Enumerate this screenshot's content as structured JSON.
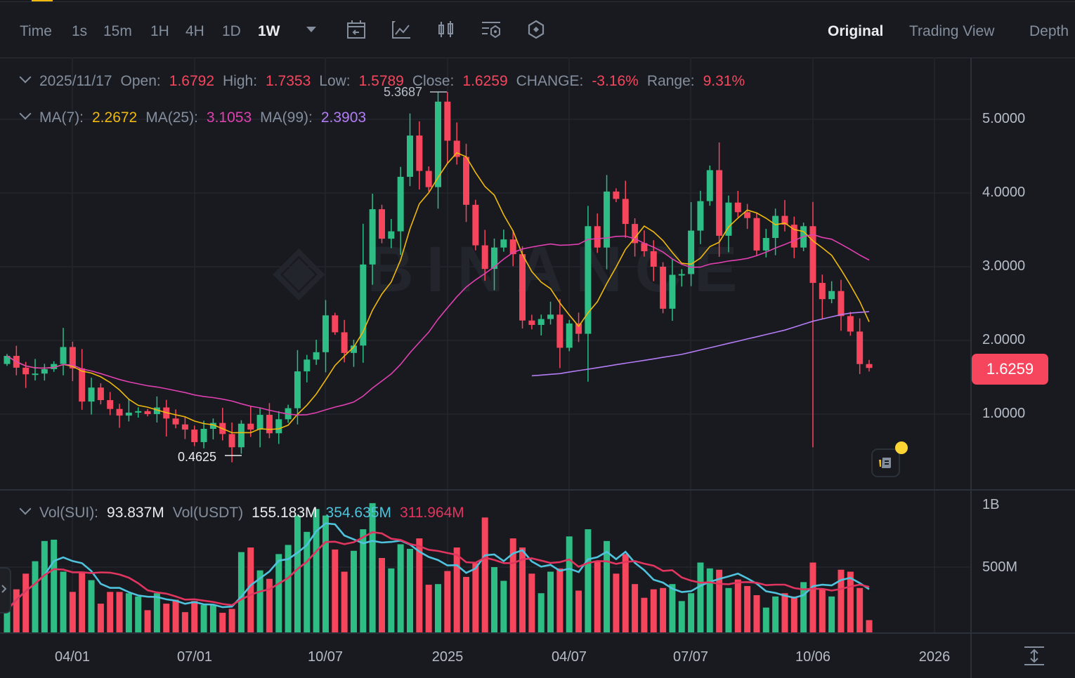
{
  "toolbar": {
    "timeframes": [
      "Time",
      "1s",
      "15m",
      "1H",
      "4H",
      "1D",
      "1W"
    ],
    "active_timeframe": "1W",
    "icons": [
      "calendar-back-icon",
      "indicator-chart-icon",
      "candle-type-icon",
      "settings-layers-icon",
      "hexagon-settings-icon"
    ],
    "view_tabs": [
      "Original",
      "Trading View",
      "Depth"
    ],
    "active_view": "Original"
  },
  "ohlc_legend": {
    "date": "2025/11/17",
    "open_label": "Open:",
    "open": "1.6792",
    "high_label": "High:",
    "high": "1.7353",
    "low_label": "Low:",
    "low": "1.5789",
    "close_label": "Close:",
    "close": "1.6259",
    "change_label": "CHANGE:",
    "change": "-3.16%",
    "range_label": "Range:",
    "range": "9.31%"
  },
  "ma_legend": {
    "ma7_label": "MA(7):",
    "ma7": "2.2672",
    "ma25_label": "MA(25):",
    "ma25": "3.1053",
    "ma99_label": "MA(99):",
    "ma99": "2.3903"
  },
  "vol_legend": {
    "sui_label": "Vol(SUI):",
    "sui": "93.837M",
    "usdt_label": "Vol(USDT)",
    "usdt": "155.183M",
    "ma1": "354.635M",
    "ma2": "311.964M"
  },
  "price_axis": [
    "5.0000",
    "4.0000",
    "3.0000",
    "2.0000",
    "1.0000"
  ],
  "volume_axis": [
    "1B",
    "500M"
  ],
  "time_axis": [
    "04/01",
    "07/01",
    "10/07",
    "2025",
    "04/07",
    "07/07",
    "10/06",
    "2026"
  ],
  "last_price": "1.6259",
  "annotations": {
    "high": "5.3687",
    "low": "0.4625"
  },
  "watermark": "BINANCE",
  "colors": {
    "up": "#2ebd85",
    "down": "#f6465d",
    "ma7": "#f0b90b",
    "ma25": "#e040b0",
    "ma99": "#b47cf5",
    "vol_ma1": "#4fc3dc",
    "vol_ma2": "#e0355f"
  },
  "chart_data": {
    "type": "candlestick",
    "interval": "1W",
    "first_open": 1.68,
    "closes": [
      1.79,
      1.63,
      1.54,
      1.55,
      1.61,
      1.68,
      1.91,
      1.62,
      1.17,
      1.36,
      1.19,
      1.07,
      0.98,
      1.02,
      1.04,
      1.0,
      1.09,
      0.94,
      0.86,
      0.79,
      0.62,
      0.8,
      0.88,
      0.73,
      0.55,
      0.87,
      0.79,
      0.99,
      0.74,
      0.93,
      1.08,
      1.58,
      1.74,
      1.84,
      2.34,
      2.11,
      1.83,
      1.93,
      3.03,
      3.78,
      3.38,
      3.48,
      4.22,
      4.78,
      4.3,
      4.08,
      5.24,
      4.71,
      4.49,
      3.84,
      3.29,
      2.97,
      3.26,
      3.37,
      3.17,
      2.27,
      2.21,
      2.29,
      2.35,
      1.9,
      2.23,
      2.09,
      3.55,
      3.26,
      4.02,
      3.92,
      3.58,
      3.32,
      3.21,
      3.0,
      2.43,
      2.89,
      2.9,
      3.49,
      3.89,
      4.31,
      3.42,
      3.87,
      3.74,
      3.66,
      3.22,
      3.39,
      3.69,
      3.57,
      3.26,
      3.55,
      2.78,
      2.56,
      2.67,
      2.33,
      2.12,
      1.6792,
      1.6259
    ],
    "high_overrides": {
      "6": 2.17,
      "26": 1.1,
      "46": 5.3687,
      "92": 1.7353
    },
    "low_overrides": {
      "25": 0.4625,
      "86": 0.55,
      "92": 1.5789
    },
    "volumes_m": [
      170,
      330,
      450,
      545,
      700,
      710,
      465,
      310,
      465,
      400,
      220,
      310,
      310,
      300,
      275,
      170,
      300,
      220,
      250,
      155,
      240,
      210,
      210,
      150,
      180,
      615,
      650,
      475,
      410,
      600,
      670,
      895,
      770,
      945,
      895,
      635,
      465,
      625,
      790,
      990,
      570,
      490,
      675,
      640,
      720,
      365,
      370,
      470,
      650,
      425,
      530,
      880,
      500,
      395,
      720,
      650,
      450,
      300,
      465,
      490,
      735,
      320,
      790,
      545,
      700,
      450,
      600,
      370,
      265,
      330,
      340,
      370,
      240,
      300,
      535,
      490,
      480,
      340,
      405,
      355,
      285,
      190,
      275,
      300,
      275,
      385,
      535,
      330,
      275,
      480,
      465,
      340,
      94
    ],
    "ma99_tail": [
      1.52,
      1.53,
      1.54,
      1.55,
      1.57,
      1.59,
      1.61,
      1.63,
      1.65,
      1.67,
      1.69,
      1.71,
      1.73,
      1.75,
      1.77,
      1.79,
      1.81,
      1.84,
      1.87,
      1.9,
      1.93,
      1.96,
      1.99,
      2.02,
      2.05,
      2.08,
      2.11,
      2.14,
      2.18,
      2.22,
      2.26,
      2.29,
      2.32,
      2.35,
      2.37,
      2.38,
      2.39
    ],
    "price_range": [
      0,
      6.2
    ],
    "volume_range_m": [
      0,
      1000
    ]
  }
}
